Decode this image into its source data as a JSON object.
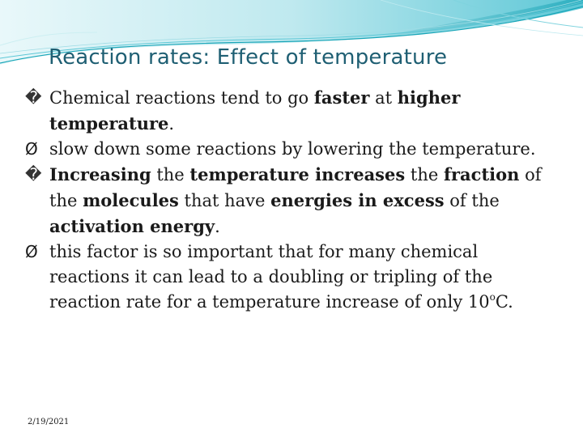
{
  "title": "Reaction rates: Effect of temperature",
  "colors": {
    "title": "#1f5f73",
    "banner_light": "#cdeff2",
    "banner_mid": "#7fd3de",
    "banner_dark": "#1aa6b8"
  },
  "bullets": [
    {
      "marker": "�",
      "marker_icon": "replacement-glyph-icon",
      "segments": [
        {
          "text": "Chemical reactions tend to go ",
          "bold": false
        },
        {
          "text": "faster",
          "bold": true
        },
        {
          "text": " at ",
          "bold": false
        },
        {
          "text": "higher temperature",
          "bold": true
        },
        {
          "text": ".",
          "bold": false
        }
      ]
    },
    {
      "marker": "Ø",
      "marker_icon": "arrow-bullet-icon",
      "segments": [
        {
          "text": " slow down some reactions by lowering the temperature.",
          "bold": false
        }
      ]
    },
    {
      "marker": "�",
      "marker_icon": "replacement-glyph-icon",
      "segments": [
        {
          "text": "Increasing",
          "bold": true
        },
        {
          "text": " the ",
          "bold": false
        },
        {
          "text": "temperature increases",
          "bold": true
        },
        {
          "text": " the ",
          "bold": false
        },
        {
          "text": "fraction",
          "bold": true
        },
        {
          "text": " of the ",
          "bold": false
        },
        {
          "text": "molecules",
          "bold": true
        },
        {
          "text": " that have ",
          "bold": false
        },
        {
          "text": "energies in excess",
          "bold": true
        },
        {
          "text": " of the ",
          "bold": false
        },
        {
          "text": "activation energy",
          "bold": true
        },
        {
          "text": ".",
          "bold": false
        }
      ]
    },
    {
      "marker": "Ø",
      "marker_icon": "arrow-bullet-icon",
      "segments": [
        {
          "text": " this factor is so important that for many chemical reactions it can lead to a doubling or tripling of the reaction rate for a temperature increase of only 10",
          "bold": false
        },
        {
          "text": "o",
          "bold": false,
          "sup": true
        },
        {
          "text": "C.",
          "bold": false
        }
      ]
    }
  ],
  "date": "2/19/2021"
}
